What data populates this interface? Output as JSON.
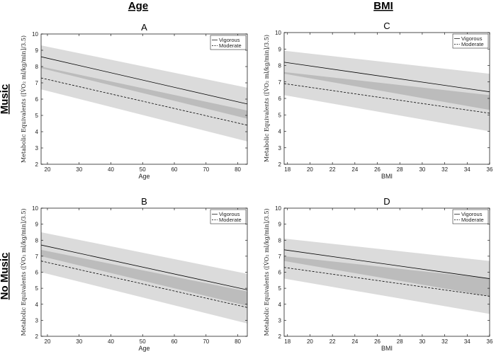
{
  "column_titles": [
    "Age",
    "BMI"
  ],
  "row_titles": [
    "Music",
    "No Music"
  ],
  "chart_data": [
    {
      "panel": "A",
      "type": "line",
      "xlabel": "Age",
      "ylabel": "Metabolic Equivalents ([V̇O₂ ml/kg/min]/3.5)",
      "xlim": [
        18,
        83
      ],
      "ylim": [
        2,
        10
      ],
      "xticks": [
        "20",
        "30",
        "40",
        "50",
        "60",
        "70",
        "80"
      ],
      "yticks": [
        "2",
        "3",
        "4",
        "5",
        "6",
        "7",
        "8",
        "9",
        "10"
      ],
      "legend": [
        "Vigorous",
        "Moderate"
      ],
      "legend_position": "top-right",
      "series": [
        {
          "name": "Vigorous",
          "style": "solid",
          "x": [
            18,
            83
          ],
          "y": [
            8.6,
            5.7
          ],
          "ci_lower": [
            7.9,
            4.8
          ],
          "ci_upper": [
            9.3,
            6.7
          ]
        },
        {
          "name": "Moderate",
          "style": "dashed",
          "x": [
            18,
            83
          ],
          "y": [
            7.3,
            4.4
          ],
          "ci_lower": [
            6.6,
            3.4
          ],
          "ci_upper": [
            8.0,
            5.3
          ]
        }
      ]
    },
    {
      "panel": "C",
      "type": "line",
      "xlabel": "BMI",
      "ylabel": "Metabolic Equivalents ([V̇O₂ ml/kg/min]/3.5)",
      "xlim": [
        17.7,
        36
      ],
      "ylim": [
        2,
        10
      ],
      "xticks": [
        "18",
        "20",
        "22",
        "24",
        "26",
        "28",
        "30",
        "32",
        "34",
        "36"
      ],
      "yticks": [
        "2",
        "3",
        "4",
        "5",
        "6",
        "7",
        "8",
        "9",
        "10"
      ],
      "legend": [
        "Vigorous",
        "Moderate"
      ],
      "legend_position": "top-right",
      "series": [
        {
          "name": "Vigorous",
          "style": "solid",
          "x": [
            17.7,
            36
          ],
          "y": [
            8.2,
            6.4
          ],
          "ci_lower": [
            7.5,
            5.3
          ],
          "ci_upper": [
            8.9,
            7.5
          ]
        },
        {
          "name": "Moderate",
          "style": "dashed",
          "x": [
            17.7,
            36
          ],
          "y": [
            6.9,
            5.1
          ],
          "ci_lower": [
            6.2,
            4.0
          ],
          "ci_upper": [
            7.6,
            6.2
          ]
        }
      ]
    },
    {
      "panel": "B",
      "type": "line",
      "xlabel": "Age",
      "ylabel": "Metabolic Equivalents ([V̇O₂ ml/kg/min]/3.5)",
      "xlim": [
        18,
        83
      ],
      "ylim": [
        2,
        10
      ],
      "xticks": [
        "20",
        "30",
        "40",
        "50",
        "60",
        "70",
        "80"
      ],
      "yticks": [
        "2",
        "3",
        "4",
        "5",
        "6",
        "7",
        "8",
        "9",
        "10"
      ],
      "legend": [
        "Vigorous",
        "Moderate"
      ],
      "legend_position": "top-right",
      "series": [
        {
          "name": "Vigorous",
          "style": "solid",
          "x": [
            18,
            83
          ],
          "y": [
            7.7,
            4.9
          ],
          "ci_lower": [
            7.0,
            3.9
          ],
          "ci_upper": [
            8.5,
            5.9
          ]
        },
        {
          "name": "Moderate",
          "style": "dashed",
          "x": [
            18,
            83
          ],
          "y": [
            6.7,
            3.8
          ],
          "ci_lower": [
            6.0,
            2.8
          ],
          "ci_upper": [
            7.4,
            4.8
          ]
        }
      ]
    },
    {
      "panel": "D",
      "type": "line",
      "xlabel": "BMI",
      "ylabel": "Metabolic Equivalents ([V̇O₂ ml/kg/min]/3.5)",
      "xlim": [
        17.7,
        36
      ],
      "ylim": [
        2,
        10
      ],
      "xticks": [
        "18",
        "20",
        "22",
        "24",
        "26",
        "28",
        "30",
        "32",
        "34",
        "36"
      ],
      "yticks": [
        "2",
        "3",
        "4",
        "5",
        "6",
        "7",
        "8",
        "9",
        "10"
      ],
      "legend": [
        "Vigorous",
        "Moderate"
      ],
      "legend_position": "top-right",
      "series": [
        {
          "name": "Vigorous",
          "style": "solid",
          "x": [
            17.7,
            36
          ],
          "y": [
            7.4,
            5.6
          ],
          "ci_lower": [
            6.7,
            4.5
          ],
          "ci_upper": [
            8.1,
            6.7
          ]
        },
        {
          "name": "Moderate",
          "style": "dashed",
          "x": [
            17.7,
            36
          ],
          "y": [
            6.3,
            4.5
          ],
          "ci_lower": [
            5.6,
            3.4
          ],
          "ci_upper": [
            7.0,
            5.6
          ]
        }
      ]
    }
  ]
}
